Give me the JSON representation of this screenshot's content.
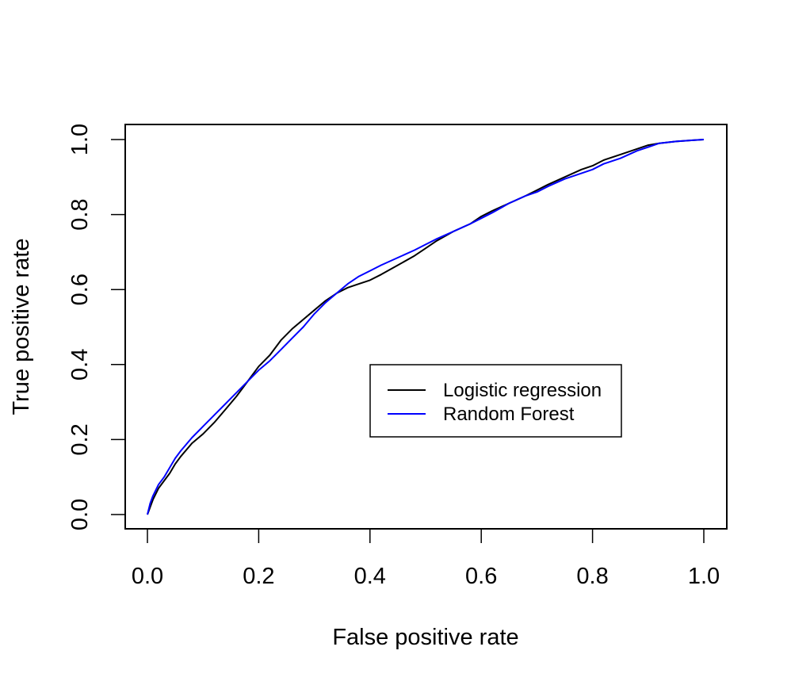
{
  "chart_data": {
    "type": "line",
    "title": "",
    "xlabel": "False positive rate",
    "ylabel": "True positive rate",
    "xlim": [
      0.0,
      1.0
    ],
    "ylim": [
      0.0,
      1.0
    ],
    "x_ticks": [
      "0.0",
      "0.2",
      "0.4",
      "0.6",
      "0.8",
      "1.0"
    ],
    "y_ticks": [
      "0.0",
      "0.2",
      "0.4",
      "0.6",
      "0.8",
      "1.0"
    ],
    "grid": false,
    "legend_position": "center-right",
    "series": [
      {
        "name": "Logistic regression",
        "color": "#000000",
        "x": [
          0.0,
          0.005,
          0.01,
          0.02,
          0.03,
          0.04,
          0.05,
          0.06,
          0.08,
          0.1,
          0.12,
          0.14,
          0.16,
          0.18,
          0.2,
          0.22,
          0.24,
          0.26,
          0.28,
          0.3,
          0.32,
          0.34,
          0.36,
          0.38,
          0.4,
          0.42,
          0.45,
          0.48,
          0.5,
          0.52,
          0.55,
          0.58,
          0.6,
          0.62,
          0.65,
          0.68,
          0.7,
          0.72,
          0.75,
          0.78,
          0.8,
          0.82,
          0.85,
          0.88,
          0.9,
          0.92,
          0.95,
          0.98,
          1.0
        ],
        "y": [
          0.0,
          0.02,
          0.04,
          0.07,
          0.09,
          0.11,
          0.135,
          0.155,
          0.19,
          0.215,
          0.245,
          0.28,
          0.315,
          0.355,
          0.395,
          0.425,
          0.465,
          0.495,
          0.52,
          0.545,
          0.57,
          0.59,
          0.605,
          0.615,
          0.625,
          0.64,
          0.665,
          0.69,
          0.71,
          0.73,
          0.755,
          0.775,
          0.795,
          0.81,
          0.83,
          0.85,
          0.865,
          0.88,
          0.9,
          0.92,
          0.93,
          0.945,
          0.96,
          0.975,
          0.985,
          0.99,
          0.995,
          0.998,
          1.0
        ]
      },
      {
        "name": "Random Forest",
        "color": "#0000ff",
        "x": [
          0.0,
          0.005,
          0.01,
          0.02,
          0.03,
          0.04,
          0.05,
          0.06,
          0.08,
          0.1,
          0.12,
          0.14,
          0.16,
          0.18,
          0.2,
          0.22,
          0.24,
          0.26,
          0.28,
          0.3,
          0.32,
          0.34,
          0.36,
          0.38,
          0.4,
          0.42,
          0.45,
          0.48,
          0.5,
          0.52,
          0.55,
          0.58,
          0.6,
          0.62,
          0.65,
          0.68,
          0.7,
          0.72,
          0.75,
          0.78,
          0.8,
          0.82,
          0.85,
          0.88,
          0.9,
          0.92,
          0.95,
          0.98,
          1.0
        ],
        "y": [
          0.0,
          0.03,
          0.05,
          0.08,
          0.1,
          0.125,
          0.15,
          0.17,
          0.205,
          0.235,
          0.265,
          0.295,
          0.325,
          0.355,
          0.385,
          0.41,
          0.44,
          0.47,
          0.5,
          0.535,
          0.565,
          0.59,
          0.615,
          0.635,
          0.65,
          0.665,
          0.685,
          0.705,
          0.72,
          0.735,
          0.755,
          0.775,
          0.79,
          0.805,
          0.83,
          0.85,
          0.86,
          0.875,
          0.895,
          0.91,
          0.92,
          0.935,
          0.95,
          0.97,
          0.98,
          0.99,
          0.995,
          0.998,
          1.0
        ]
      }
    ]
  }
}
